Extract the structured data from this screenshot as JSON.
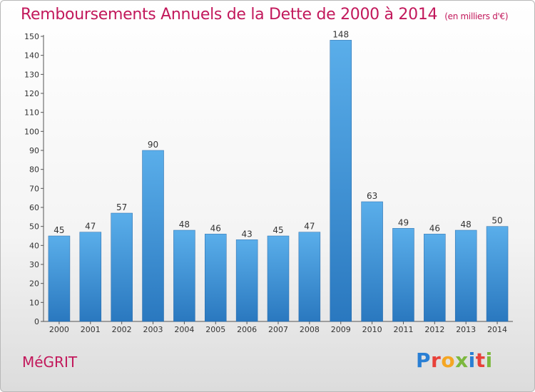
{
  "title": "Remboursements Annuels de la Dette de 2000 à 2014",
  "unit": "(en milliers d'€)",
  "commune": "MéGRIT",
  "logo": {
    "text": "Proxiti",
    "letters": [
      "P",
      "r",
      "o",
      "x",
      "i",
      "t",
      "i"
    ],
    "colors": [
      "#2a7fd4",
      "#e8413a",
      "#f5a623",
      "#7cb83e",
      "#2a7fd4",
      "#e8413a",
      "#7cb83e"
    ]
  },
  "colors": {
    "bar_top": "#5aaeea",
    "bar_bottom": "#2a78bf",
    "title": "#c2185b"
  },
  "chart_data": {
    "type": "bar",
    "title": "Remboursements Annuels de la Dette de 2000 à 2014",
    "xlabel": "",
    "ylabel": "",
    "categories": [
      "2000",
      "2001",
      "2002",
      "2003",
      "2004",
      "2005",
      "2006",
      "2007",
      "2008",
      "2009",
      "2010",
      "2011",
      "2012",
      "2013",
      "2014"
    ],
    "values": [
      45,
      47,
      57,
      90,
      48,
      46,
      43,
      45,
      47,
      148,
      63,
      49,
      46,
      48,
      50
    ],
    "ylim": [
      0,
      150
    ],
    "yticks": [
      0,
      10,
      20,
      30,
      40,
      50,
      60,
      70,
      80,
      90,
      100,
      110,
      120,
      130,
      140,
      150
    ],
    "grid": false,
    "data_labels": true
  }
}
